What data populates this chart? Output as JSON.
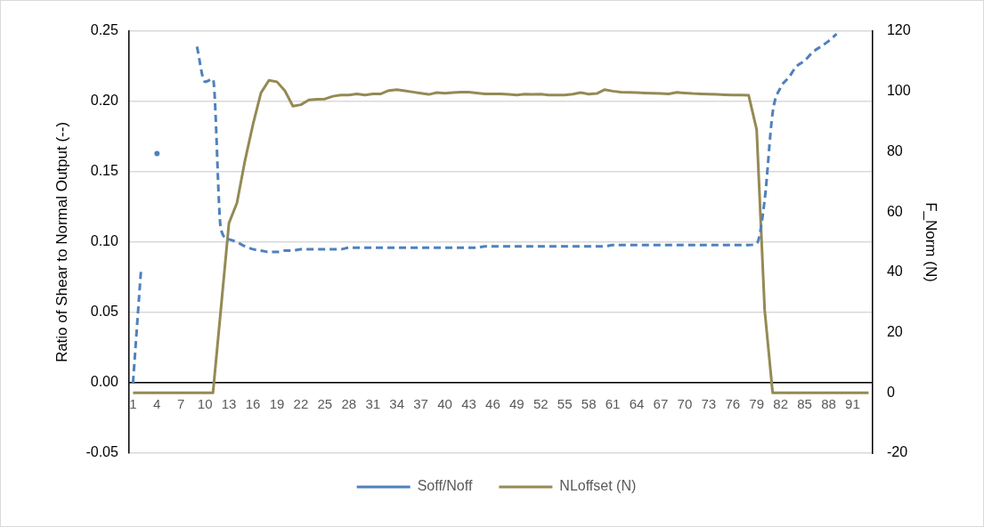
{
  "chart_data": {
    "type": "line",
    "categories": [
      "1",
      null,
      null,
      "4",
      null,
      null,
      "7",
      null,
      null,
      "10",
      null,
      null,
      "13",
      null,
      null,
      "16",
      null,
      null,
      "19",
      null,
      null,
      "22",
      null,
      null,
      "25",
      null,
      null,
      "28",
      null,
      null,
      "31",
      null,
      null,
      "34",
      null,
      null,
      "37",
      null,
      null,
      "40",
      null,
      null,
      "43",
      null,
      null,
      "46",
      null,
      null,
      "49",
      null,
      null,
      "52",
      null,
      null,
      "55",
      null,
      null,
      "58",
      null,
      null,
      "61",
      null,
      null,
      "64",
      null,
      null,
      "67",
      null,
      null,
      "70",
      null,
      null,
      "73",
      null,
      null,
      "76",
      null,
      null,
      "79",
      null,
      null,
      "82",
      null,
      null,
      "85",
      null,
      null,
      "88",
      null,
      null,
      "91",
      null,
      null
    ],
    "series": [
      {
        "name": "Soff/Noff",
        "color": "#4f81bd",
        "line_style": "dashed",
        "values": [
          0.0,
          0.08,
          null,
          0.163,
          null,
          null,
          null,
          null,
          0.239,
          0.214,
          0.216,
          0.109,
          0.102,
          0.1,
          0.097,
          0.095,
          0.094,
          0.093,
          0.093,
          0.094,
          0.094,
          0.095,
          0.095,
          0.095,
          0.095,
          0.095,
          0.095,
          0.096,
          0.096,
          0.096,
          0.096,
          0.096,
          0.096,
          0.096,
          0.096,
          0.096,
          0.096,
          0.096,
          0.096,
          0.096,
          0.096,
          0.096,
          0.096,
          0.096,
          0.097,
          0.097,
          0.097,
          0.097,
          0.097,
          0.097,
          0.097,
          0.097,
          0.097,
          0.097,
          0.097,
          0.097,
          0.097,
          0.097,
          0.097,
          0.097,
          0.098,
          0.098,
          0.098,
          0.098,
          0.098,
          0.098,
          0.098,
          0.098,
          0.098,
          0.098,
          0.098,
          0.098,
          0.098,
          0.098,
          0.098,
          0.098,
          0.098,
          0.098,
          0.099,
          0.13,
          0.192,
          0.21,
          0.217,
          0.225,
          0.229,
          0.235,
          0.239,
          0.243,
          0.248,
          null,
          null,
          null,
          null
        ]
      },
      {
        "name": "NLoffset (N)",
        "color": "#948a54",
        "line_style": "solid",
        "axis": "y2",
        "values": [
          0,
          0,
          0,
          0,
          0,
          0,
          0,
          0,
          0,
          0,
          0,
          28,
          56.3,
          63,
          77,
          89,
          99.5,
          103.7,
          103.2,
          100.2,
          95.1,
          95.6,
          97.2,
          97.4,
          97.5,
          98.4,
          98.8,
          98.8,
          99.2,
          98.8,
          99.2,
          99.2,
          100.3,
          100.6,
          100.2,
          99.8,
          99.4,
          99.0,
          99.6,
          99.4,
          99.6,
          99.8,
          99.8,
          99.5,
          99.2,
          99.2,
          99.2,
          99.0,
          98.8,
          99.1,
          99.0,
          99.1,
          98.8,
          98.8,
          98.8,
          99.1,
          99.6,
          99.1,
          99.3,
          100.6,
          100.1,
          99.8,
          99.7,
          99.6,
          99.5,
          99.4,
          99.3,
          99.2,
          99.7,
          99.5,
          99.3,
          99.2,
          99.1,
          99.0,
          98.9,
          98.8,
          98.8,
          98.7,
          87.3,
          27.5,
          0,
          0,
          0,
          0,
          0,
          0,
          0,
          0,
          0,
          0,
          0,
          0,
          0
        ]
      }
    ],
    "ylabel": "Ratio of Shear to Normal Output (--)",
    "y2label": "F_Norm (N)",
    "ylim": [
      -0.05,
      0.25
    ],
    "yticks": [
      {
        "value": -0.05,
        "label": "-0.05"
      },
      {
        "value": 0,
        "label": "0.00"
      },
      {
        "value": 0.05,
        "label": "0.05"
      },
      {
        "value": 0.1,
        "label": "0.10"
      },
      {
        "value": 0.15,
        "label": "0.15"
      },
      {
        "value": 0.2,
        "label": "0.20"
      },
      {
        "value": 0.25,
        "label": "0.25"
      }
    ],
    "y2lim": [
      -20,
      120
    ],
    "y2ticks": [
      -20,
      0,
      20,
      40,
      60,
      80,
      100,
      120
    ],
    "grid": "y",
    "legend": "bottom",
    "marker": "none"
  }
}
